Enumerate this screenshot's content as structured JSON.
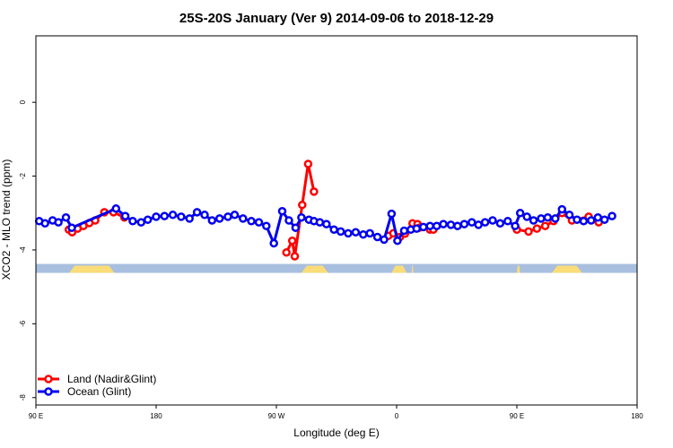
{
  "chart_data": {
    "type": "line",
    "title": "25S-20S January (Ver 9)   2014-09-06 to 2018-12-29",
    "xlabel": "Longitude (deg E)",
    "ylabel": "XCO2 - MLO trend (ppm)",
    "xlim": [
      90,
      450
    ],
    "ylim": [
      -8.2,
      1.8
    ],
    "x_ticks": [
      {
        "value": 90,
        "label": "90 E"
      },
      {
        "value": 162,
        "label": "180"
      },
      {
        "value": 234,
        "label": "90 W"
      },
      {
        "value": 306,
        "label": "0"
      },
      {
        "value": 378,
        "label": "90 E"
      },
      {
        "value": 450,
        "label": "180"
      }
    ],
    "y_ticks": [
      {
        "value": 0,
        "label": "0"
      },
      {
        "value": -2,
        "label": "-2"
      },
      {
        "value": -4,
        "label": "-4"
      },
      {
        "value": -6,
        "label": "-6"
      },
      {
        "value": -8,
        "label": "-8"
      }
    ],
    "land_mask": {
      "y": -4.5,
      "ocean_color": "#a8bfdf",
      "land_color": "#fadc78",
      "land_segments": [
        [
          110,
          137
        ],
        [
          249,
          265
        ],
        [
          303,
          312
        ],
        [
          315,
          316
        ],
        [
          378,
          380
        ],
        [
          399,
          417
        ]
      ]
    },
    "series": [
      {
        "name": "Land (Nadir&Glint)",
        "color": "#ff0000",
        "x": [
          109.7,
          111.7,
          115.0,
          118.5,
          122.0,
          125.5,
          131.0,
          136.5,
          143.0,
          240.0,
          243.5,
          245.0,
          249.5,
          253.0,
          256.5,
          301.0,
          304.0,
          308.0,
          311.0,
          315.5,
          318.5,
          319.5,
          326.0,
          328.0,
          378.0,
          385.0,
          390.0,
          395.0,
          400.0,
          405.0,
          411.0,
          421.0,
          427.0
        ],
        "y": [
          -3.45,
          -3.52,
          -3.42,
          -3.35,
          -3.27,
          -3.2,
          -2.98,
          -2.98,
          -3.12,
          -4.07,
          -3.75,
          -4.17,
          -2.78,
          -1.67,
          -2.42,
          -3.62,
          -3.55,
          -3.65,
          -3.56,
          -3.28,
          -3.3,
          -3.4,
          -3.45,
          -3.45,
          -3.45,
          -3.5,
          -3.42,
          -3.35,
          -3.22,
          -3.0,
          -3.2,
          -3.1,
          -3.25
        ]
      },
      {
        "name": "Ocean (Glint)",
        "color": "#0000ee",
        "x": [
          92.0,
          95.5,
          100.0,
          103.5,
          108.0,
          111.5,
          138.0,
          143.5,
          148.0,
          153.0,
          157.0,
          162.0,
          167.0,
          172.0,
          177.0,
          182.0,
          186.5,
          191.0,
          195.5,
          200.0,
          205.0,
          209.0,
          214.0,
          219.0,
          223.5,
          228.0,
          232.5,
          237.5,
          241.5,
          245.5,
          249.0,
          253.5,
          256.5,
          260.0,
          264.0,
          268.5,
          272.5,
          277.0,
          281.5,
          286.0,
          290.0,
          294.5,
          298.5,
          303.0,
          306.5,
          310.5,
          314.5,
          318.0,
          322.0,
          326.0,
          330.0,
          334.0,
          338.5,
          342.5,
          346.5,
          351.0,
          355.0,
          359.0,
          363.5,
          368.0,
          372.5,
          377.0,
          380.0,
          384.0,
          388.0,
          392.5,
          396.5,
          401.0,
          405.0,
          409.5,
          414.0,
          418.0,
          422.5,
          426.5,
          430.5,
          435.0
        ],
        "y": [
          -3.22,
          -3.28,
          -3.2,
          -3.25,
          -3.12,
          -3.4,
          -2.88,
          -3.08,
          -3.22,
          -3.25,
          -3.18,
          -3.1,
          -3.08,
          -3.05,
          -3.1,
          -3.15,
          -2.98,
          -3.05,
          -3.2,
          -3.15,
          -3.1,
          -3.05,
          -3.15,
          -3.22,
          -3.25,
          -3.35,
          -3.82,
          -2.95,
          -3.2,
          -3.4,
          -3.12,
          -3.18,
          -3.22,
          -3.25,
          -3.3,
          -3.45,
          -3.5,
          -3.55,
          -3.52,
          -3.58,
          -3.55,
          -3.65,
          -3.72,
          -3.02,
          -3.75,
          -3.48,
          -3.45,
          -3.42,
          -3.38,
          -3.35,
          -3.35,
          -3.3,
          -3.32,
          -3.35,
          -3.3,
          -3.25,
          -3.32,
          -3.25,
          -3.2,
          -3.28,
          -3.22,
          -3.35,
          -3.0,
          -3.1,
          -3.2,
          -3.15,
          -3.12,
          -3.15,
          -2.9,
          -3.05,
          -3.18,
          -3.22,
          -3.2,
          -3.12,
          -3.18,
          -3.08
        ]
      }
    ],
    "legend": {
      "placement": "bottom-left",
      "entries": [
        "Land (Nadir&Glint)",
        "Ocean (Glint)"
      ]
    },
    "grid": false
  }
}
